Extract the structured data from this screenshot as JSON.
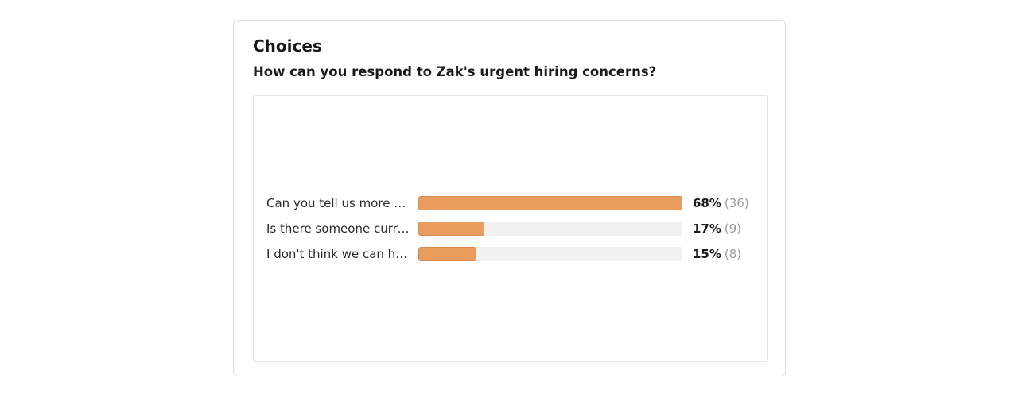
{
  "card": {
    "title": "Choices",
    "question": "How can you respond to Zak's urgent hiring concerns?"
  },
  "colors": {
    "bar_fill": "#e89d5e",
    "bar_track": "#f1f1f1"
  },
  "chart_data": {
    "type": "bar",
    "orientation": "horizontal",
    "title": "How can you respond to Zak's urgent hiring concerns?",
    "categories": [
      "Can you tell us more a...",
      "Is there someone curre...",
      "I don't think we can hir..."
    ],
    "series": [
      {
        "values": [
          68,
          17,
          15
        ]
      }
    ],
    "value_labels": [
      "68%",
      "17%",
      "15%"
    ],
    "counts": [
      "(36)",
      "(9)",
      "(8)"
    ],
    "xlim": [
      0,
      100
    ],
    "grid": false,
    "legend": "none"
  }
}
